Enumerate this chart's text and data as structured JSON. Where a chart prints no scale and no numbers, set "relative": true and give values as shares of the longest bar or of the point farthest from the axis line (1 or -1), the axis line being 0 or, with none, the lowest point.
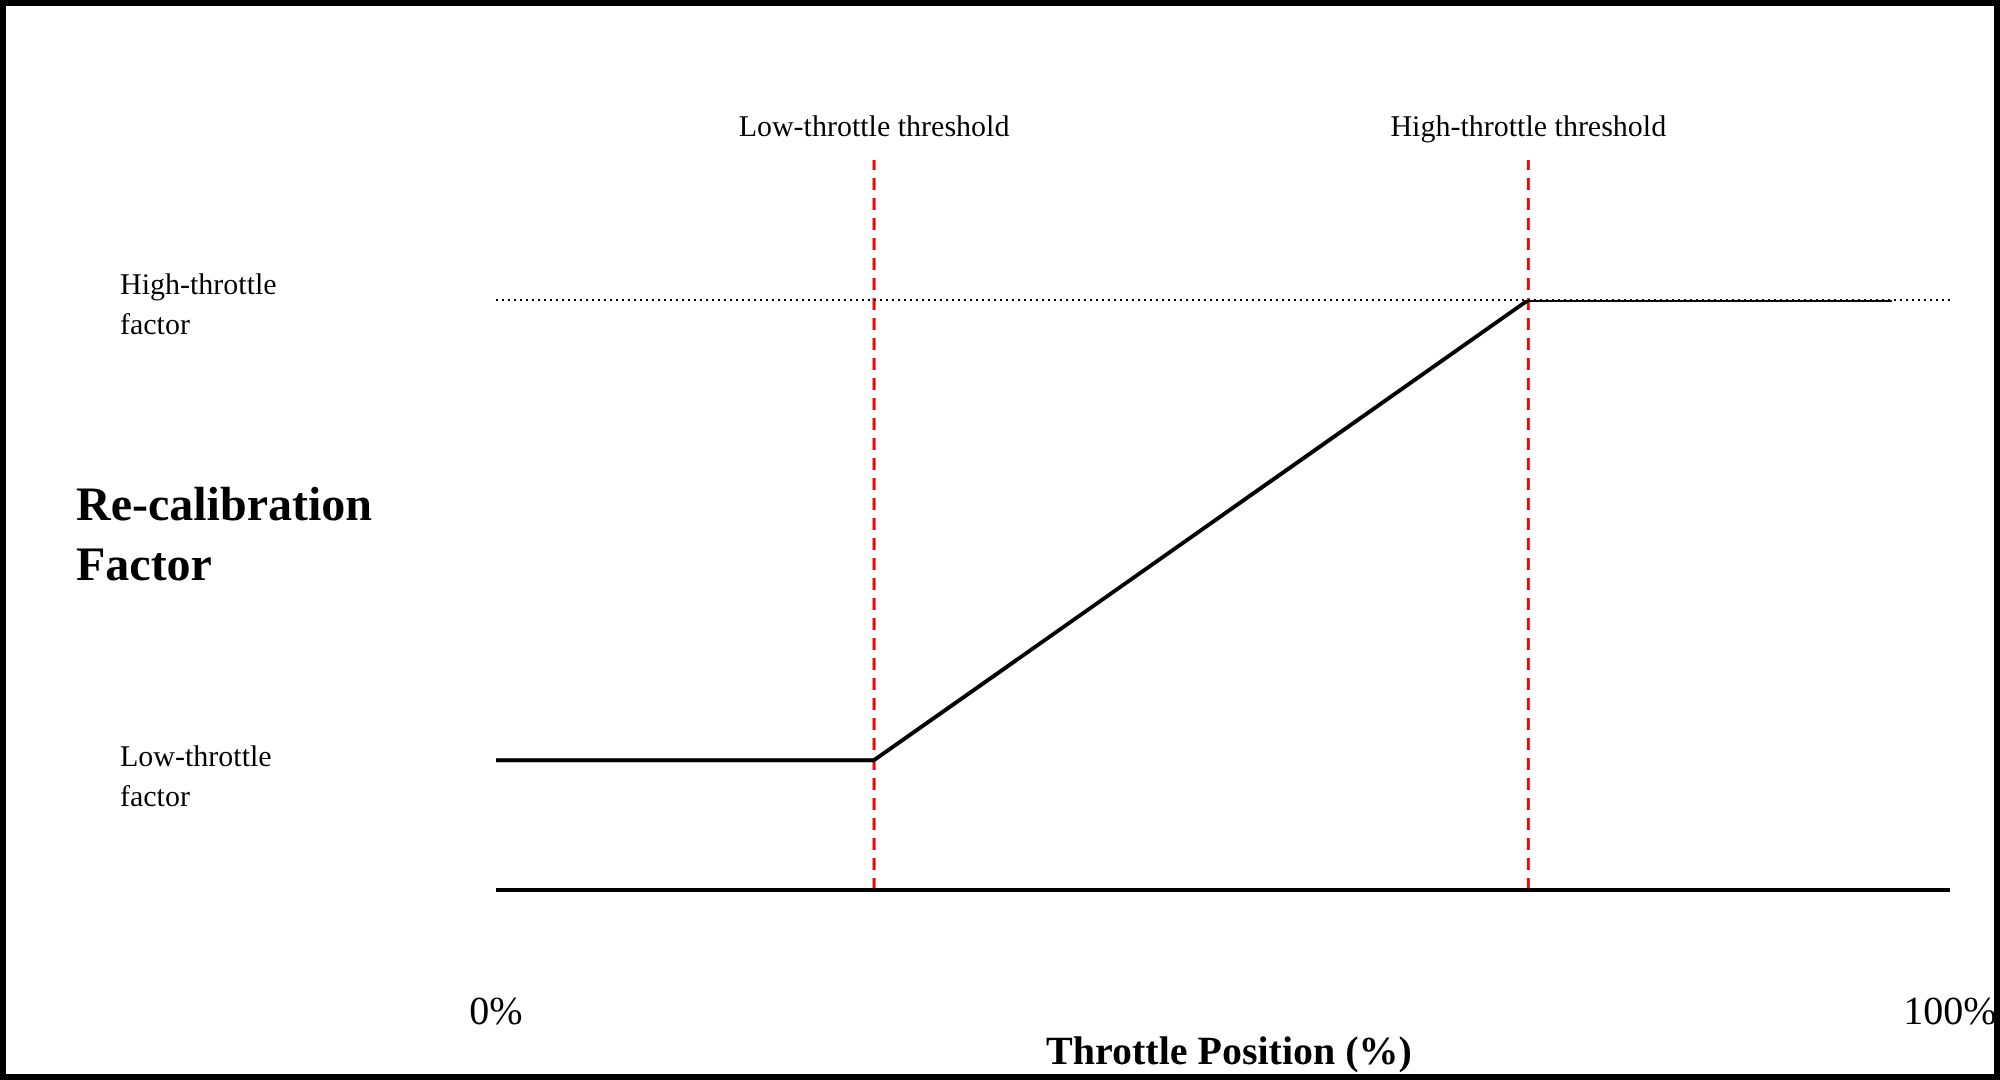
{
  "chart_data": {
    "type": "line",
    "xlabel": "Throttle Position (%)",
    "ylabel": "Re-calibration Factor",
    "relative": true,
    "x": [
      0,
      26,
      71,
      96
    ],
    "series": [
      {
        "color": "#000000",
        "values": [
          0.22,
          0.22,
          1,
          1
        ]
      }
    ],
    "xlim": [
      0,
      100
    ],
    "xticks": [
      {
        "value": 0,
        "label": "0%"
      },
      {
        "value": 100,
        "label": "100%"
      }
    ],
    "tick_labels": "x",
    "marker": "none",
    "line_style": "solid",
    "ref_lines": [
      {
        "axis": "x",
        "value": 26,
        "label": "Low-throttle threshold",
        "color": "#ff0000",
        "line_style": "dashed"
      },
      {
        "axis": "x",
        "value": 71,
        "label": "High-throttle threshold",
        "color": "#ff0000",
        "line_style": "dashed"
      },
      {
        "axis": "y",
        "value": 1,
        "label": "High-throttle factor",
        "color": "#000000",
        "line_style": "dotted"
      }
    ],
    "annotations": [
      "Low-throttle factor"
    ]
  }
}
